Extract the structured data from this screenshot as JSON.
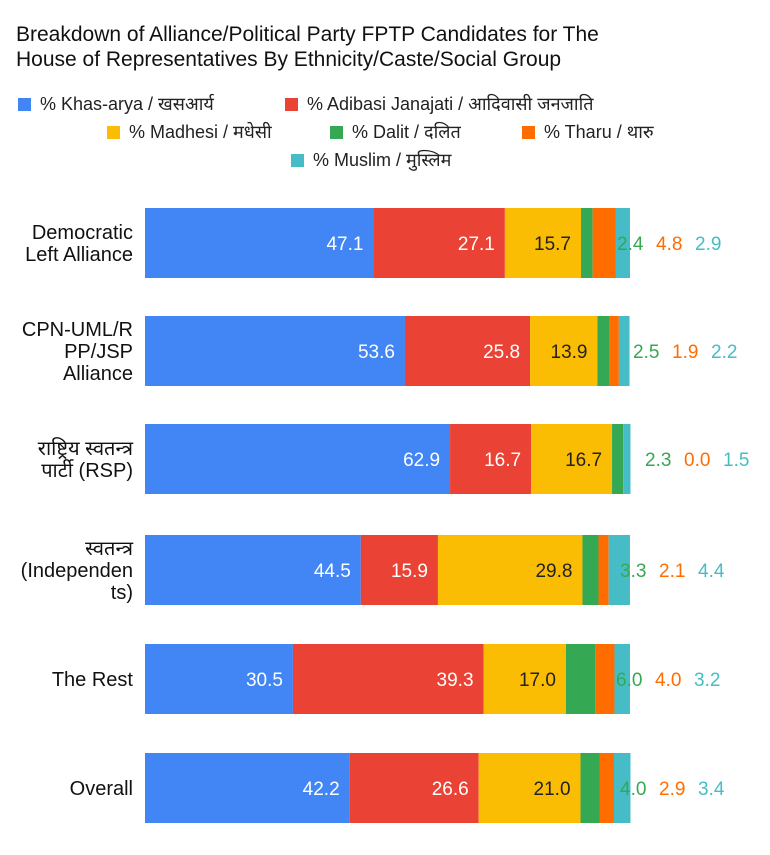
{
  "chart_data": {
    "type": "bar",
    "orientation": "horizontal",
    "stacked": true,
    "title_lines": [
      "Breakdown of Alliance/Political Party FPTP Candidates for The",
      "House of Representatives By Ethnicity/Caste/Social Group"
    ],
    "legend_position": "top",
    "grid": false,
    "xlim": [
      0,
      100
    ],
    "categories": [
      {
        "lines": [
          "Democratic",
          "Left Alliance"
        ]
      },
      {
        "lines": [
          "CPN-UML/R",
          "PP/JSP",
          "Alliance"
        ]
      },
      {
        "lines": [
          "राष्ट्रिय स्वतन्त्र",
          "पार्टी (RSP)"
        ]
      },
      {
        "lines": [
          "स्वतन्त्र",
          "(Independen",
          "ts)"
        ]
      },
      {
        "lines": [
          "The Rest"
        ]
      },
      {
        "lines": [
          "Overall"
        ]
      }
    ],
    "series": [
      {
        "name": "% Khas-arya / खसआर्य",
        "color": "#4285f4",
        "label_color": "#ffffff",
        "values": [
          47.1,
          53.6,
          62.9,
          44.5,
          30.5,
          42.2
        ]
      },
      {
        "name": "% Adibasi Janajati / आदिवासी जनजाति",
        "color": "#ea4335",
        "label_color": "#ffffff",
        "values": [
          27.1,
          25.8,
          16.7,
          15.9,
          39.3,
          26.6
        ]
      },
      {
        "name": "% Madhesi / मधेसी",
        "color": "#fbbc04",
        "label_color": "#222222",
        "values": [
          15.7,
          13.9,
          16.7,
          29.8,
          17.0,
          21.0
        ]
      },
      {
        "name": "% Dalit / दलित",
        "color": "#34a853",
        "label_color": "#34a853",
        "values": [
          2.4,
          2.5,
          2.3,
          3.3,
          6.0,
          4.0
        ]
      },
      {
        "name": "% Tharu / थारु",
        "color": "#ff6d01",
        "label_color": "#ff6d01",
        "values": [
          4.8,
          1.9,
          0.0,
          2.1,
          4.0,
          2.9
        ]
      },
      {
        "name": "% Muslim / मुस्लिम",
        "color": "#46bdc6",
        "label_color": "#46bdc6",
        "values": [
          2.9,
          2.2,
          1.5,
          4.4,
          3.2,
          3.4
        ]
      }
    ]
  }
}
